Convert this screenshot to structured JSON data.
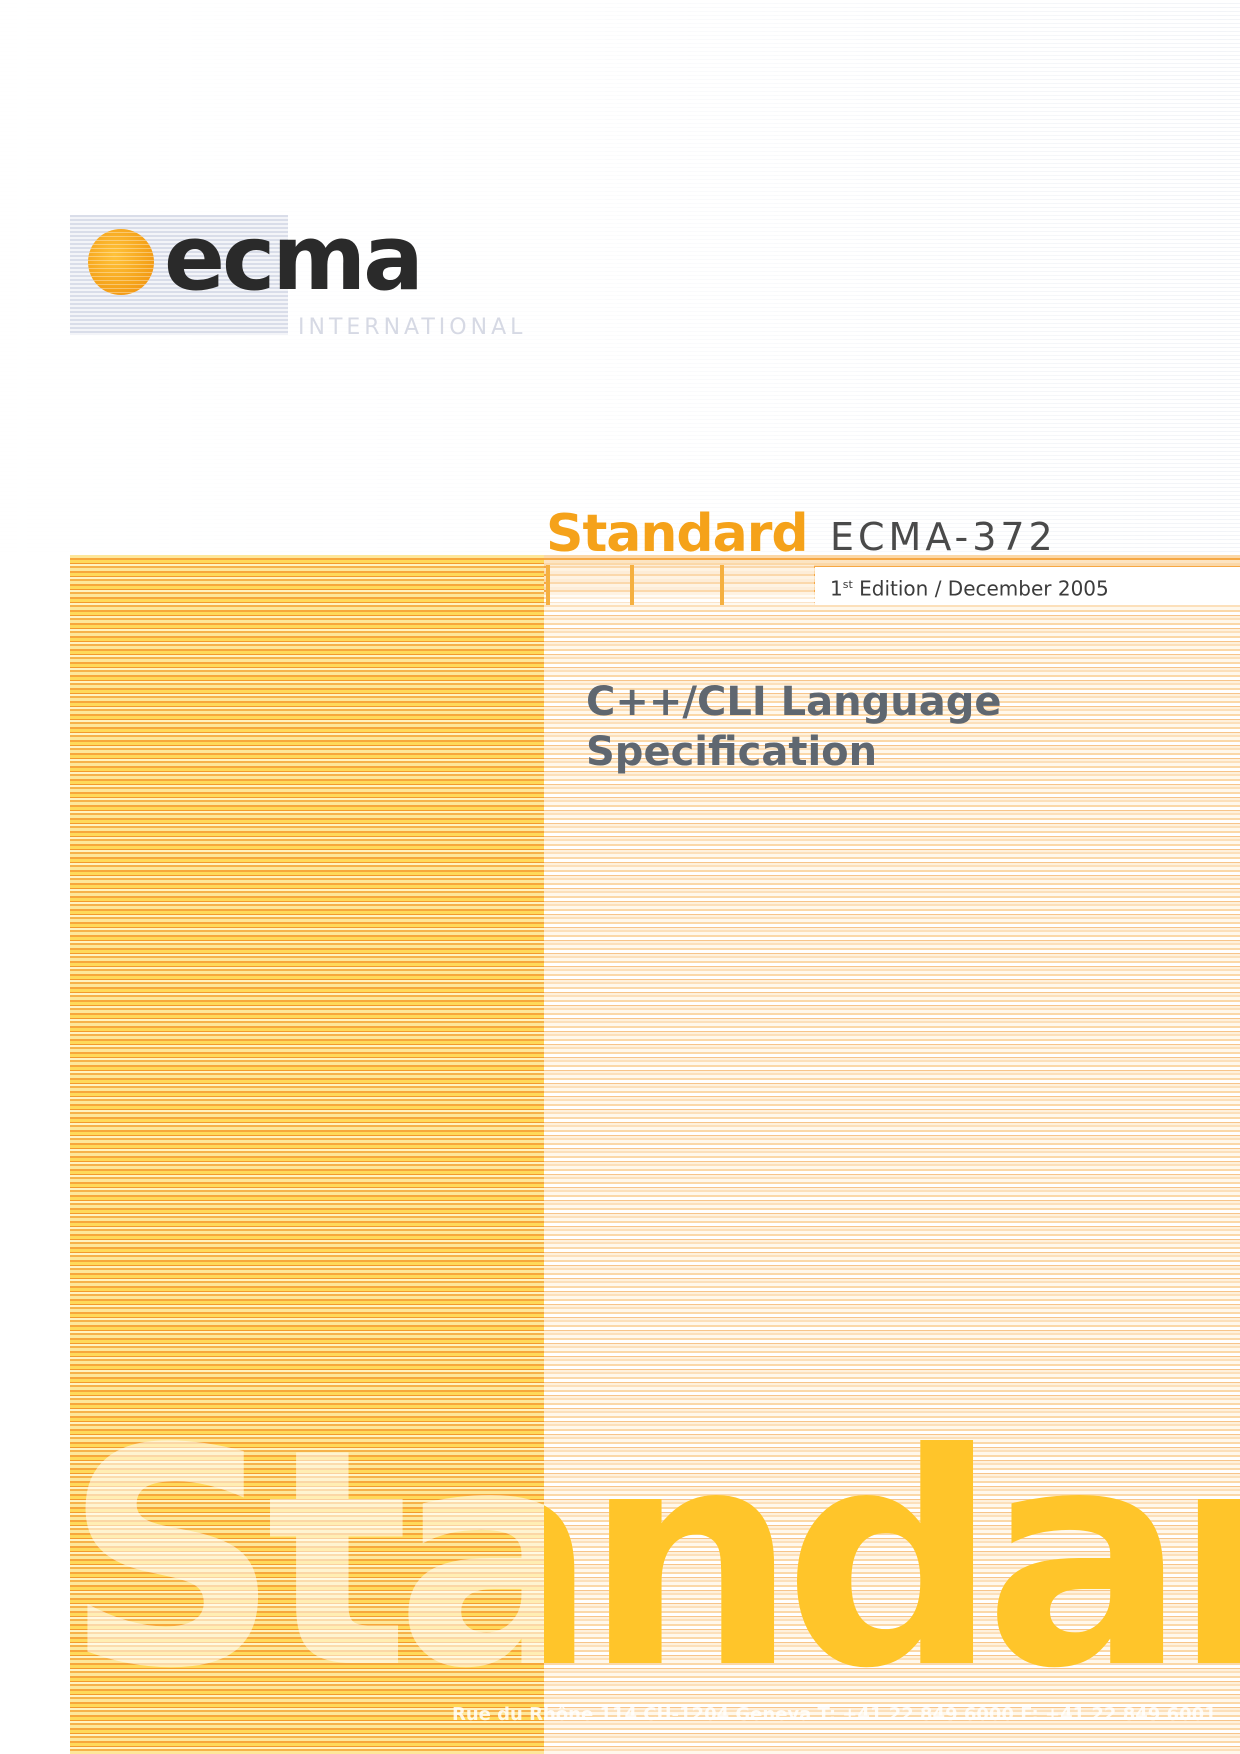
{
  "logo": {
    "word": "ecma",
    "sub": "INTERNATIONAL"
  },
  "header": {
    "standard": "Standard",
    "code": "ECMA-372"
  },
  "edition": {
    "ordinal": "1",
    "suffix": "st",
    "text": "Edition / December 2005"
  },
  "title": {
    "line1": "C++/CLI Language",
    "line2": "Specification"
  },
  "watermark": "Standard",
  "address": "Rue du Rhône 114   CH-1204 Geneva   T: +41 22 849 6000   F: +41 22 849 6001",
  "colors": {
    "orange": "#f5a21a",
    "yellow": "#ffd95a",
    "title_gray": "#5f6770"
  }
}
